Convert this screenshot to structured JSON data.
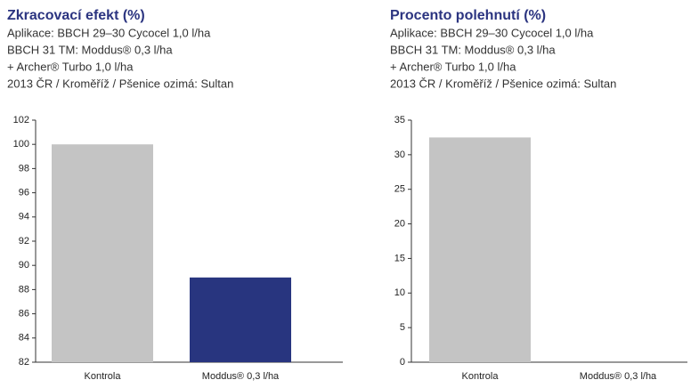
{
  "chart_data": [
    {
      "type": "bar",
      "title": "Zkracovací efekt (%)",
      "subtitle_lines": [
        "Aplikace: BBCH 29–30  Cycocel 1,0 l/ha",
        "BBCH 31 TM: Moddus® 0,3 l/ha",
        "+ Archer® Turbo 1,0 l/ha",
        "2013 ČR / Kroměříž / Pšenice ozimá: Sultan"
      ],
      "categories": [
        "Kontrola",
        "Moddus® 0,3 l/ha"
      ],
      "values": [
        100,
        89
      ],
      "colors": [
        "#c4c4c4",
        "#28357f"
      ],
      "ylim": [
        82,
        102
      ],
      "yticks": [
        82,
        84,
        86,
        88,
        90,
        92,
        94,
        96,
        98,
        100,
        102
      ]
    },
    {
      "type": "bar",
      "title": "Procento polehnutí (%)",
      "subtitle_lines": [
        "Aplikace: BBCH 29–30  Cycocel 1,0 l/ha",
        "BBCH 31 TM: Moddus® 0,3 l/ha",
        "+ Archer® Turbo 1,0 l/ha",
        "2013 ČR / Kroměříž / Pšenice ozimá: Sultan"
      ],
      "categories": [
        "Kontrola",
        "Moddus® 0,3 l/ha"
      ],
      "values": [
        32.5,
        0
      ],
      "colors": [
        "#c4c4c4",
        "#28357f"
      ],
      "ylim": [
        0,
        35
      ],
      "yticks": [
        0,
        5,
        10,
        15,
        20,
        25,
        30,
        35
      ]
    }
  ]
}
